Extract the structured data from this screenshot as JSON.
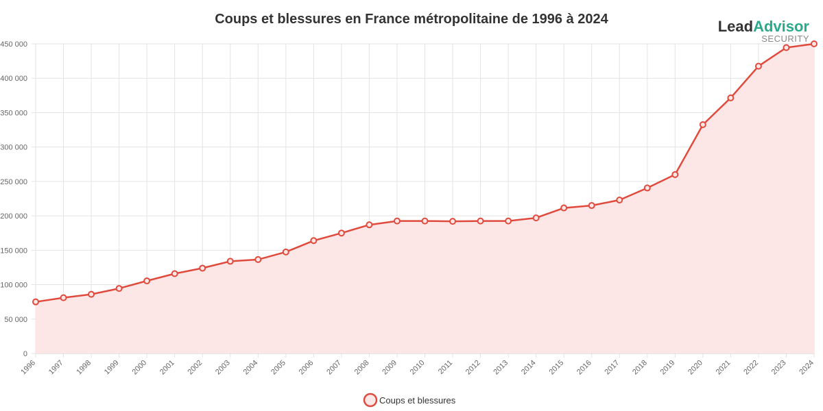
{
  "brand": {
    "name_part1": "Lead",
    "name_part2": "Advisor",
    "subtitle": "SECURITY",
    "color_part1": "#333333",
    "color_part2": "#2aaa8a"
  },
  "chart_data": {
    "type": "area",
    "title": "Coups et blessures en France métropolitaine de 1996 à 2024",
    "xlabel": "",
    "ylabel": "",
    "categories": [
      "1996",
      "1997",
      "1998",
      "1999",
      "2000",
      "2001",
      "2002",
      "2003",
      "2004",
      "2005",
      "2006",
      "2007",
      "2008",
      "2009",
      "2010",
      "2011",
      "2012",
      "2013",
      "2014",
      "2015",
      "2016",
      "2017",
      "2018",
      "2019",
      "2020",
      "2021",
      "2022",
      "2023",
      "2024"
    ],
    "series": [
      {
        "name": "Coups et blessures",
        "color": "#e04a3c",
        "fill": "#fce6e6",
        "values": [
          75000,
          81000,
          86000,
          94500,
          105500,
          116000,
          124000,
          134000,
          136500,
          147500,
          164000,
          175000,
          187000,
          192500,
          192500,
          192000,
          192500,
          192500,
          197000,
          211500,
          215000,
          223000,
          240500,
          260000,
          332500,
          371500,
          417500,
          444500,
          450000
        ]
      }
    ],
    "ylim": [
      0,
      450000
    ],
    "yticks": [
      0,
      50000,
      100000,
      150000,
      200000,
      250000,
      300000,
      350000,
      400000,
      450000
    ],
    "ytick_labels": [
      "0",
      "50 000",
      "100 000",
      "150 000",
      "200 000",
      "250 000",
      "300 000",
      "350 000",
      "400 000",
      "450 000"
    ],
    "grid": true,
    "legend_position": "bottom"
  }
}
